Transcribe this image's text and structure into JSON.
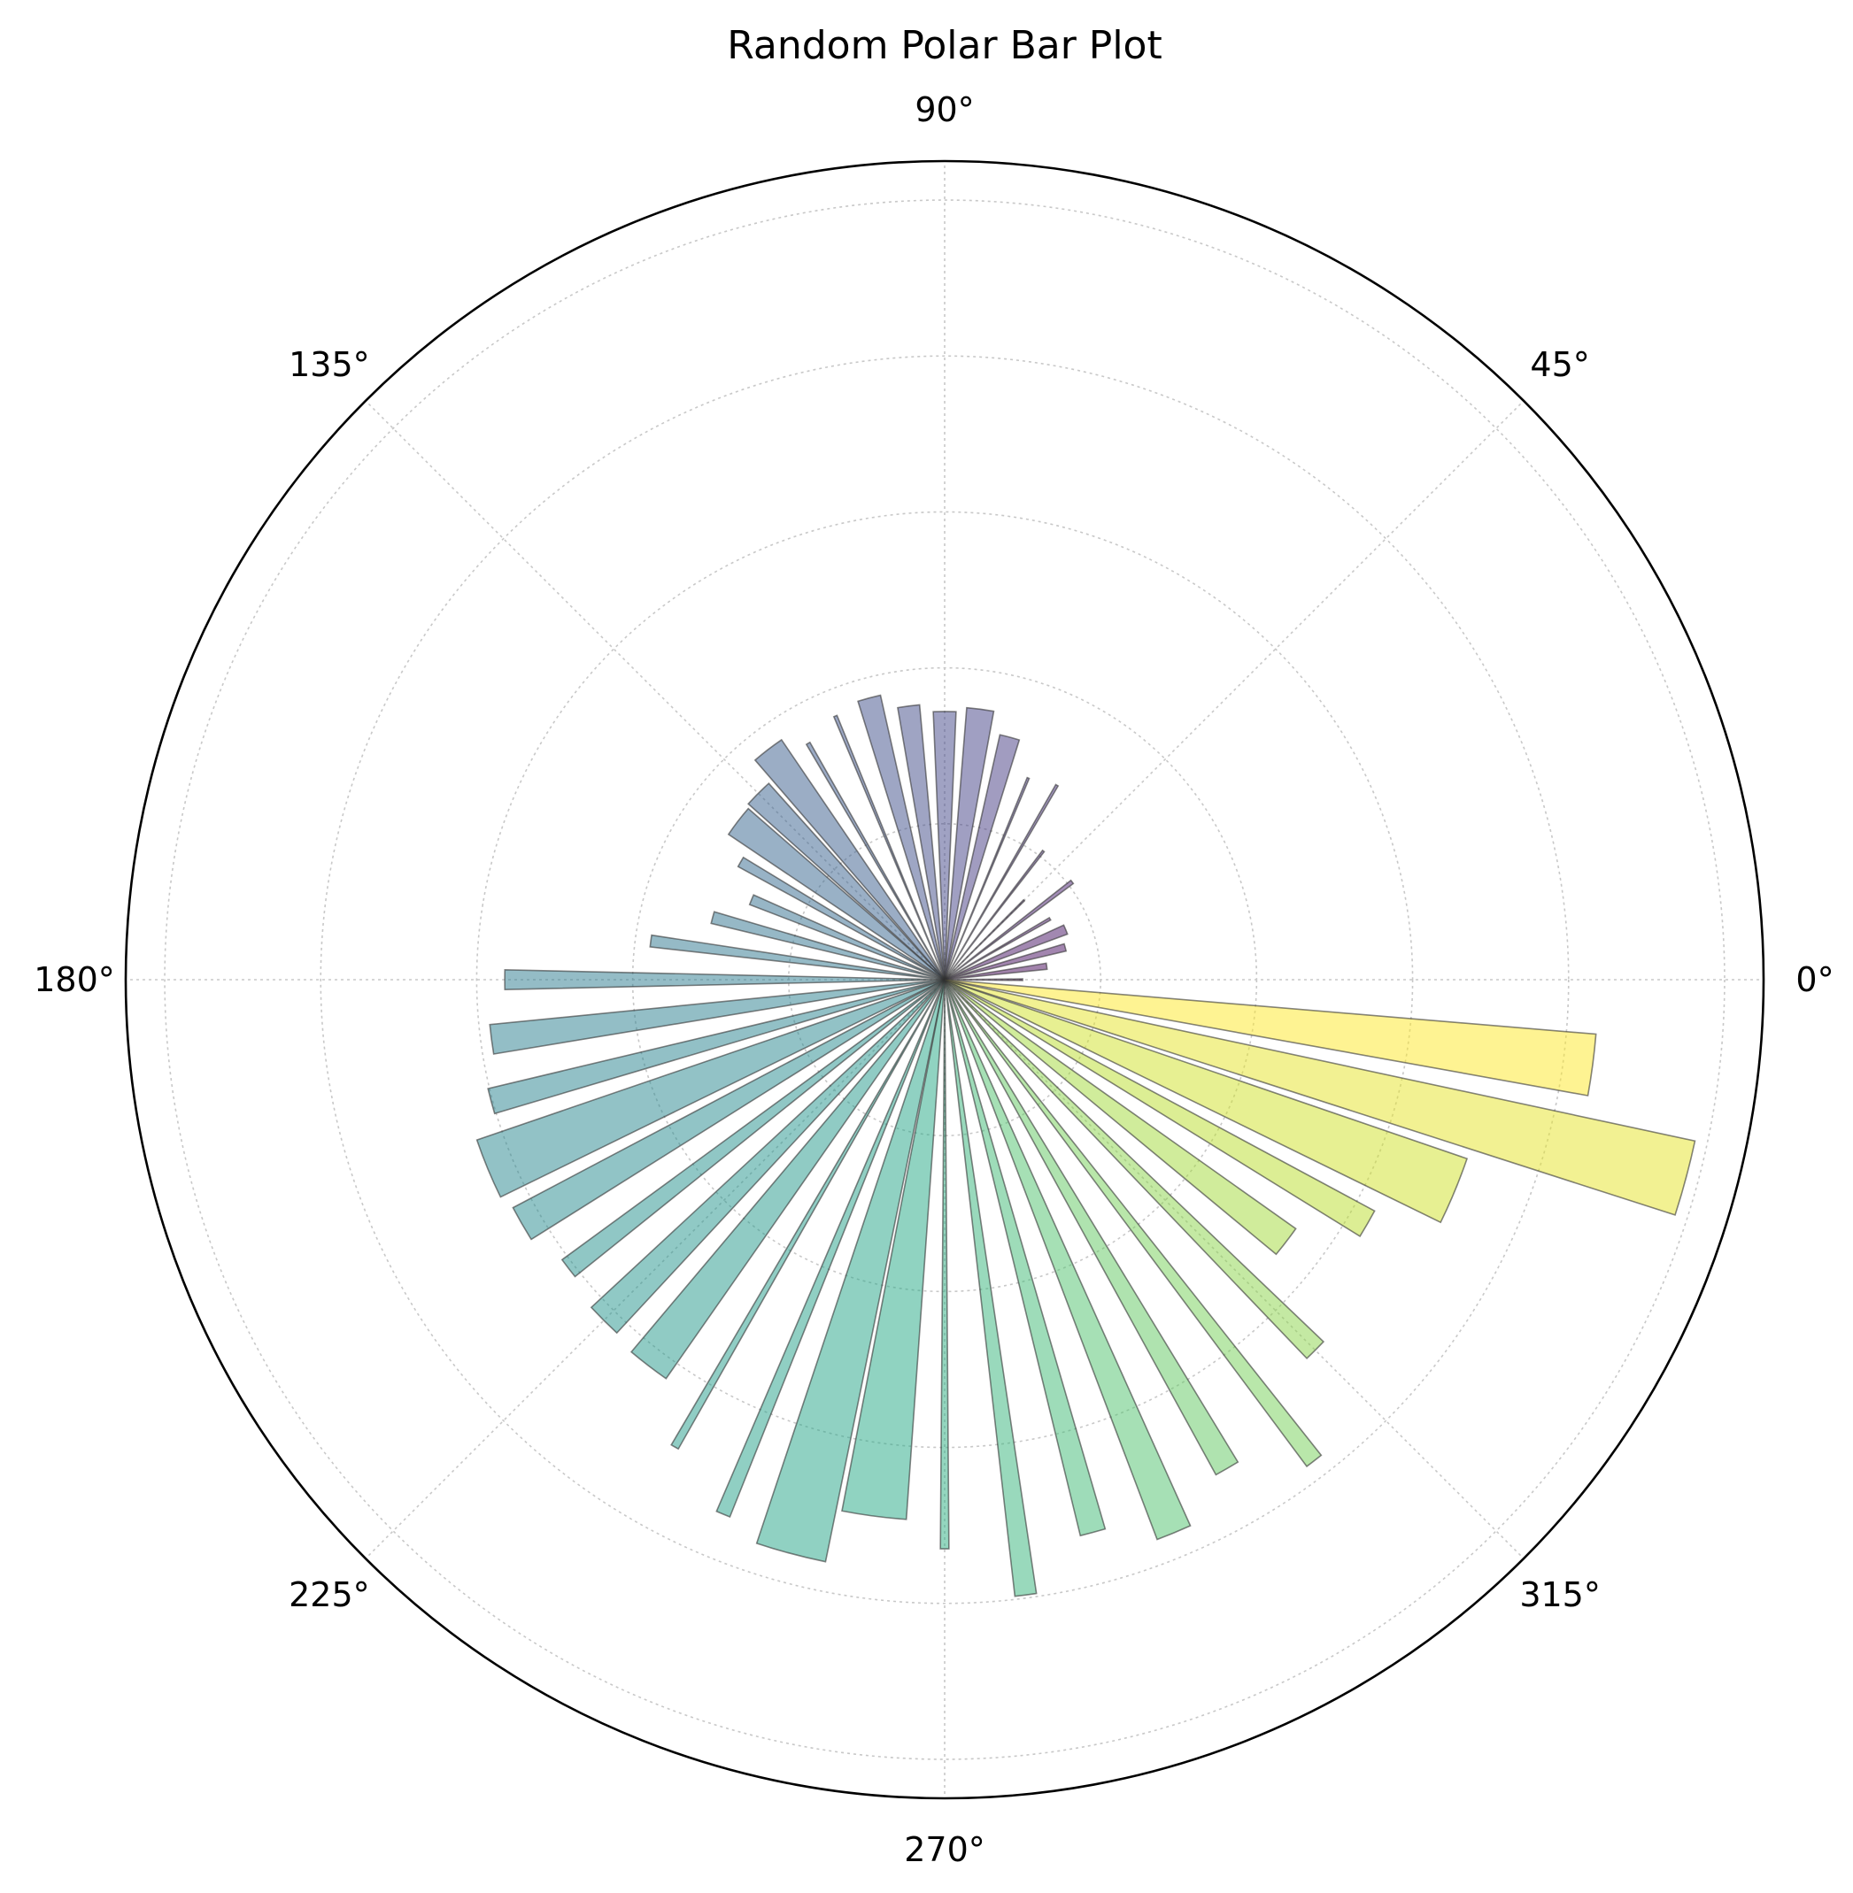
{
  "chart_data": {
    "type": "bar",
    "projection": "polar",
    "title": "Random Polar Bar Plot",
    "angle_unit": "degrees",
    "theta_tick_labels": [
      "0°",
      "45°",
      "90°",
      "135°",
      "180°",
      "225°",
      "270°",
      "315°"
    ],
    "theta_ticks": [
      0,
      45,
      90,
      135,
      180,
      225,
      270,
      315
    ],
    "rlim": [
      0,
      5.25
    ],
    "rgrid": [
      1,
      2,
      3,
      4,
      5
    ],
    "radial_tick_labels_shown": false,
    "grid": true,
    "colormap": "viridis",
    "bar_alpha": 0.5,
    "edge_color": "#333333",
    "bars": [
      {
        "theta": 0,
        "r": 0.5,
        "width": 0.02
      },
      {
        "theta": 7.5,
        "r": 0.66,
        "width": 0.06
      },
      {
        "theta": 15,
        "r": 0.8,
        "width": 0.06
      },
      {
        "theta": 22.5,
        "r": 0.84,
        "width": 0.075
      },
      {
        "theta": 30,
        "r": 0.78,
        "width": 0.022
      },
      {
        "theta": 37.5,
        "r": 1.03,
        "width": 0.025
      },
      {
        "theta": 45,
        "r": 0.72,
        "width": 0.012
      },
      {
        "theta": 52.5,
        "r": 1.04,
        "width": 0.013
      },
      {
        "theta": 60,
        "r": 1.44,
        "width": 0.012
      },
      {
        "theta": 67.5,
        "r": 1.4,
        "width": 0.01
      },
      {
        "theta": 75,
        "r": 1.61,
        "width": 0.08
      },
      {
        "theta": 82.5,
        "r": 1.75,
        "width": 0.1
      },
      {
        "theta": 90,
        "r": 1.72,
        "width": 0.085
      },
      {
        "theta": 97.5,
        "r": 1.77,
        "width": 0.08
      },
      {
        "theta": 105,
        "r": 1.87,
        "width": 0.08
      },
      {
        "theta": 112.5,
        "r": 1.83,
        "width": 0.012
      },
      {
        "theta": 120,
        "r": 1.75,
        "width": 0.015
      },
      {
        "theta": 127.5,
        "r": 1.86,
        "width": 0.115
      },
      {
        "theta": 135,
        "r": 1.69,
        "width": 0.11
      },
      {
        "theta": 142.5,
        "r": 1.67,
        "width": 0.125
      },
      {
        "theta": 150,
        "r": 1.51,
        "width": 0.045
      },
      {
        "theta": 157.5,
        "r": 1.34,
        "width": 0.05
      },
      {
        "theta": 165,
        "r": 1.54,
        "width": 0.05
      },
      {
        "theta": 172.5,
        "r": 1.9,
        "width": 0.04
      },
      {
        "theta": 180,
        "r": 2.82,
        "width": 0.045
      },
      {
        "theta": 187.5,
        "r": 2.93,
        "width": 0.065
      },
      {
        "theta": 195,
        "r": 3.01,
        "width": 0.055
      },
      {
        "theta": 202.5,
        "r": 3.17,
        "width": 0.125
      },
      {
        "theta": 210,
        "r": 3.13,
        "width": 0.075
      },
      {
        "theta": 217.5,
        "r": 3.04,
        "width": 0.045
      },
      {
        "theta": 225,
        "r": 3.09,
        "width": 0.075
      },
      {
        "theta": 232.5,
        "r": 3.12,
        "width": 0.09
      },
      {
        "theta": 240,
        "r": 3.46,
        "width": 0.015
      },
      {
        "theta": 247.5,
        "r": 3.71,
        "width": 0.025
      },
      {
        "theta": 255,
        "r": 3.81,
        "width": 0.12
      },
      {
        "theta": 262.5,
        "r": 3.47,
        "width": 0.12
      },
      {
        "theta": 270,
        "r": 3.65,
        "width": 0.015
      },
      {
        "theta": 277.5,
        "r": 3.98,
        "width": 0.035
      },
      {
        "theta": 285,
        "r": 3.67,
        "width": 0.045
      },
      {
        "theta": 292.5,
        "r": 3.84,
        "width": 0.06
      },
      {
        "theta": 300,
        "r": 3.62,
        "width": 0.045
      },
      {
        "theta": 307.5,
        "r": 3.89,
        "width": 0.03
      },
      {
        "theta": 315,
        "r": 3.36,
        "width": 0.045
      },
      {
        "theta": 322.5,
        "r": 2.76,
        "width": 0.075
      },
      {
        "theta": 330,
        "r": 3.13,
        "width": 0.06
      },
      {
        "theta": 337.5,
        "r": 3.54,
        "width": 0.125
      },
      {
        "theta": 345,
        "r": 4.92,
        "width": 0.1
      },
      {
        "theta": 352.5,
        "r": 4.19,
        "width": 0.095
      }
    ]
  }
}
